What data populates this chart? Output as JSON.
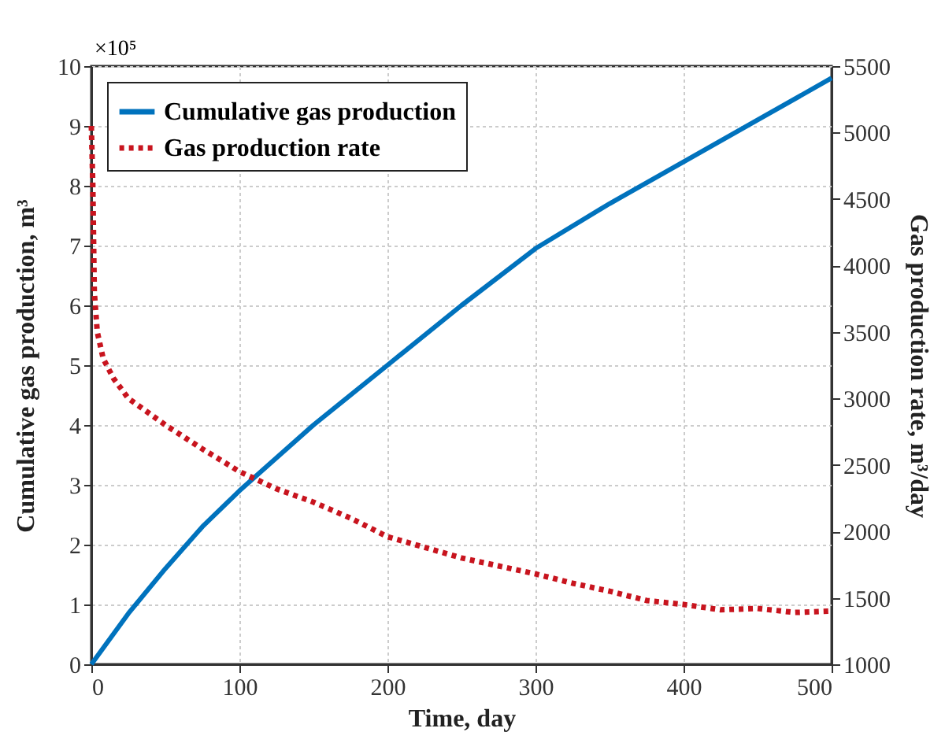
{
  "chart_data": {
    "type": "line",
    "xlabel": "Time, day",
    "ylabel": "Cumulative gas production, m³",
    "y2label": "Gas production rate, m³/day",
    "annotations": [
      "×10⁵"
    ],
    "xlim": [
      0,
      500
    ],
    "xticks": [
      0,
      100,
      200,
      300,
      400,
      500
    ],
    "ylim": [
      0,
      10
    ],
    "yticks": [
      0,
      1,
      2,
      3,
      4,
      5,
      6,
      7,
      8,
      9,
      10
    ],
    "y2lim": [
      1000,
      5500
    ],
    "y2ticks": [
      1000,
      1500,
      2000,
      2500,
      3000,
      3500,
      4000,
      4500,
      5000,
      5500
    ],
    "grid": true,
    "legend": "top left",
    "marker": "none",
    "series": [
      {
        "name": "Cumulative gas production",
        "color": "#0072bd",
        "line_style": "solid",
        "x": [
          0,
          25,
          50,
          75,
          100,
          150,
          200,
          250,
          300,
          350,
          400,
          450,
          500
        ],
        "values": [
          0,
          0.85,
          1.6,
          2.3,
          2.9,
          4.0,
          5.0,
          6.0,
          6.95,
          7.7,
          8.4,
          9.1,
          9.8
        ]
      },
      {
        "name": "Gas production rate",
        "color": "#c8141e",
        "line_style": "dotted",
        "axis": "y2",
        "x": [
          0,
          1,
          2,
          4,
          8,
          15,
          25,
          50,
          75,
          100,
          125,
          150,
          175,
          200,
          225,
          250,
          275,
          300,
          325,
          350,
          375,
          400,
          425,
          450,
          475,
          500
        ],
        "values": [
          5050,
          4600,
          3800,
          3500,
          3300,
          3150,
          3000,
          2800,
          2620,
          2450,
          2320,
          2220,
          2100,
          1960,
          1880,
          1800,
          1740,
          1680,
          1610,
          1550,
          1480,
          1450,
          1410,
          1420,
          1390,
          1400
        ]
      }
    ]
  }
}
